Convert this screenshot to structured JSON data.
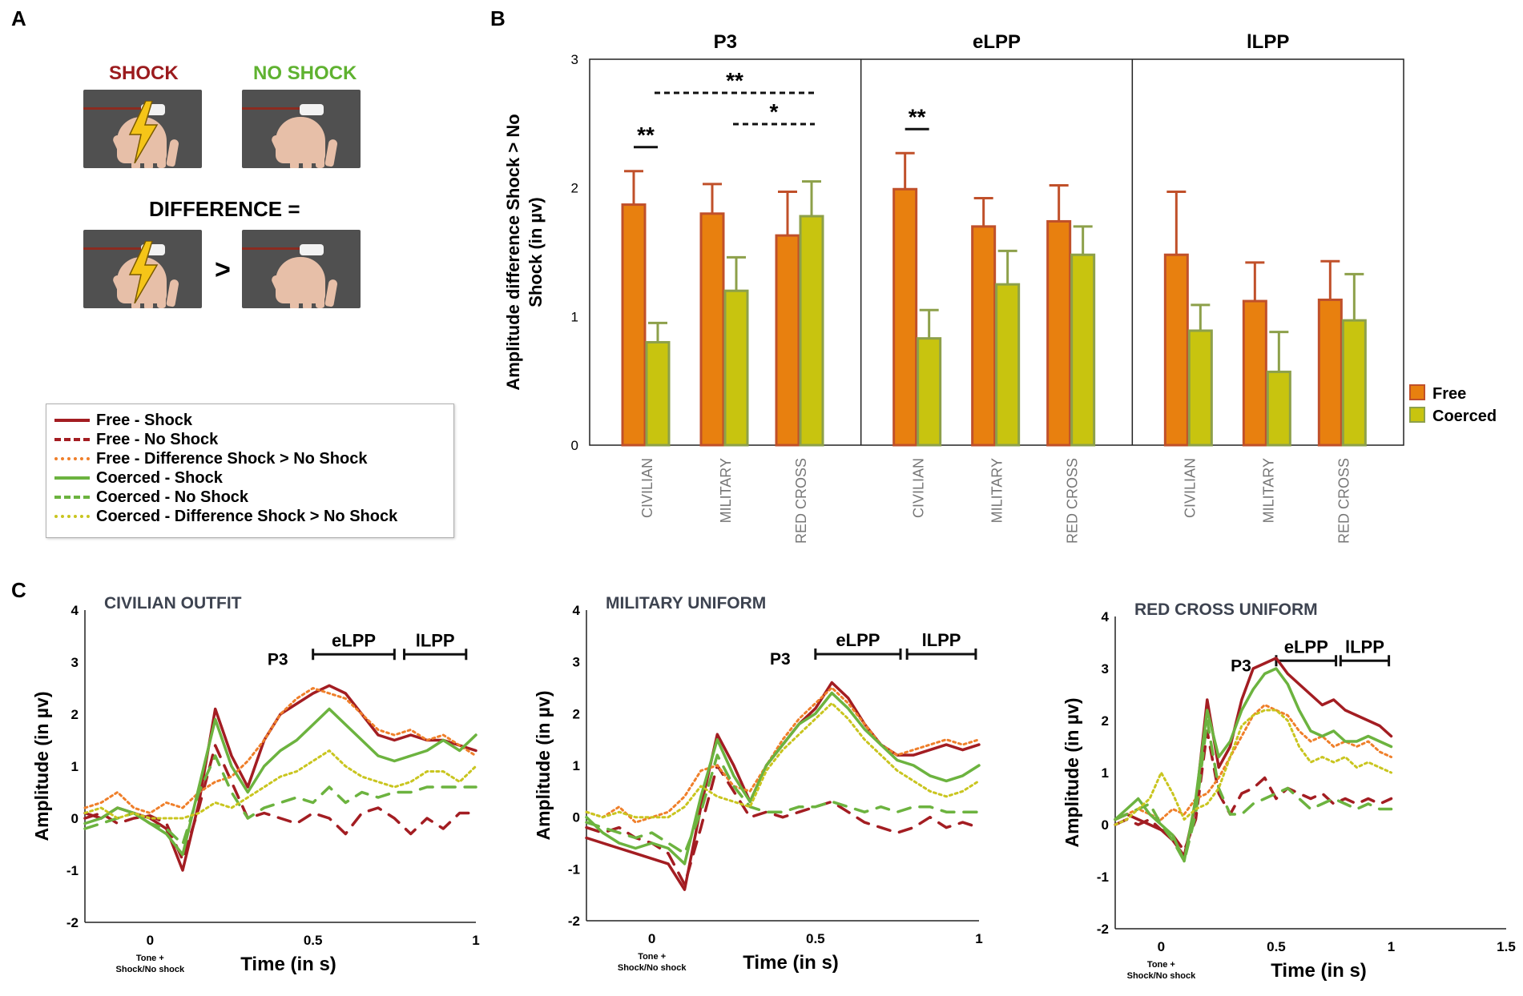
{
  "panels": {
    "a": "A",
    "b": "B",
    "c": "C"
  },
  "panel_a": {
    "shock_label": "SHOCK",
    "no_shock_label": "NO SHOCK",
    "difference_label": "DIFFERENCE =",
    "greater_than": ">",
    "shock_color": "#9b1b1e",
    "no_shock_color": "#5fb230"
  },
  "legend": [
    {
      "label": "Free - Shock",
      "color": "#a31d22",
      "style": "solid"
    },
    {
      "label": "Free - No Shock",
      "color": "#a31d22",
      "style": "dashed"
    },
    {
      "label": "Free - Difference Shock > No Shock",
      "color": "#ef7f2a",
      "style": "dotted"
    },
    {
      "label": "Coerced - Shock",
      "color": "#6cb33f",
      "style": "solid"
    },
    {
      "label": "Coerced - No Shock",
      "color": "#6cb33f",
      "style": "dashed"
    },
    {
      "label": "Coerced - Difference Shock > No Shock",
      "color": "#c9c51f",
      "style": "dotted"
    }
  ],
  "colors": {
    "free_bar": "#e8800f",
    "free_edge": "#c0502a",
    "coerced_bar": "#c8c40f",
    "coerced_edge": "#8da04a",
    "free_line": "#a31d22",
    "coerced_line": "#6cb33f",
    "free_diff": "#ef7f2a",
    "coerced_diff": "#c9c51f"
  },
  "chart_data": [
    {
      "id": "panel-b",
      "type": "bar",
      "ylabel": "Amplitude difference Shock > No Shock (in µv)",
      "ylim": [
        0,
        3
      ],
      "yticks": [
        "0",
        "1",
        "2",
        "3"
      ],
      "categories": [
        "CIVILIAN",
        "MILITARY",
        "RED CROSS"
      ],
      "legend_labels": [
        "Free",
        "Coerced"
      ],
      "legend_position": "right",
      "groups": [
        {
          "title": "P3",
          "series": [
            {
              "name": "Free",
              "values": [
                1.87,
                1.8,
                1.63
              ],
              "errors": [
                0.26,
                0.23,
                0.34
              ]
            },
            {
              "name": "Coerced",
              "values": [
                0.8,
                1.2,
                1.78
              ],
              "errors": [
                0.15,
                0.26,
                0.27
              ]
            }
          ],
          "significance": [
            {
              "label": "**",
              "from": "CIVILIAN Free",
              "to": "CIVILIAN Coerced"
            },
            {
              "label": "**",
              "from": "CIVILIAN Coerced",
              "to": "RED CROSS Coerced"
            },
            {
              "label": "*",
              "from": "MILITARY Coerced",
              "to": "RED CROSS Coerced"
            }
          ]
        },
        {
          "title": "eLPP",
          "series": [
            {
              "name": "Free",
              "values": [
                1.99,
                1.7,
                1.74
              ],
              "errors": [
                0.28,
                0.22,
                0.28
              ]
            },
            {
              "name": "Coerced",
              "values": [
                0.83,
                1.25,
                1.48
              ],
              "errors": [
                0.22,
                0.26,
                0.22
              ]
            }
          ],
          "significance": [
            {
              "label": "**",
              "from": "CIVILIAN Free",
              "to": "CIVILIAN Coerced"
            }
          ]
        },
        {
          "title": "lLPP",
          "series": [
            {
              "name": "Free",
              "values": [
                1.48,
                1.12,
                1.13
              ],
              "errors": [
                0.49,
                0.3,
                0.3
              ]
            },
            {
              "name": "Coerced",
              "values": [
                0.89,
                0.57,
                0.97
              ],
              "errors": [
                0.2,
                0.31,
                0.36
              ]
            }
          ],
          "significance": []
        }
      ]
    },
    {
      "id": "panel-c-civilian",
      "type": "line",
      "title": "CIVILIAN OUTFIT",
      "xlabel": "Time (in s)",
      "ylabel": "Amplitude (in µv)",
      "xlim": [
        -0.2,
        1.0
      ],
      "ylim": [
        -2,
        4
      ],
      "xticks": [
        {
          "v": 0,
          "label": "0"
        },
        {
          "v": 0.5,
          "label": "0.5"
        },
        {
          "v": 1.0,
          "label": "1"
        }
      ],
      "yticks": [
        -2,
        -1,
        0,
        1,
        2,
        3,
        4
      ],
      "onset_label": [
        "Tone +",
        "Shock/No shock"
      ],
      "components": [
        {
          "label": "P3",
          "v": 0.45,
          "type": "label"
        },
        {
          "label": "eLPP",
          "start": 0.5,
          "end": 0.75
        },
        {
          "label": "lLPP",
          "start": 0.78,
          "end": 0.97
        }
      ],
      "x": [
        -0.2,
        -0.15,
        -0.1,
        -0.05,
        0,
        0.05,
        0.1,
        0.15,
        0.2,
        0.25,
        0.3,
        0.35,
        0.4,
        0.45,
        0.5,
        0.55,
        0.6,
        0.65,
        0.7,
        0.75,
        0.8,
        0.85,
        0.9,
        0.95,
        1.0
      ],
      "series": [
        {
          "name": "Free - Shock",
          "values": [
            0.1,
            0.0,
            0.2,
            0.1,
            0.0,
            -0.2,
            -1.0,
            0.3,
            2.1,
            1.2,
            0.6,
            1.5,
            2.0,
            2.2,
            2.4,
            2.55,
            2.4,
            2.0,
            1.6,
            1.5,
            1.6,
            1.5,
            1.5,
            1.4,
            1.3
          ]
        },
        {
          "name": "Free - No Shock",
          "values": [
            0.0,
            0.1,
            -0.1,
            0.0,
            0.05,
            -0.1,
            -0.8,
            0.2,
            1.4,
            0.7,
            0.0,
            0.1,
            0.0,
            -0.1,
            0.1,
            0.0,
            -0.3,
            0.1,
            0.2,
            0.0,
            -0.3,
            0.0,
            -0.2,
            0.1,
            0.1
          ]
        },
        {
          "name": "Free - Difference",
          "values": [
            0.2,
            0.3,
            0.5,
            0.2,
            0.1,
            0.3,
            0.2,
            0.5,
            0.7,
            0.8,
            1.1,
            1.5,
            2.0,
            2.3,
            2.5,
            2.4,
            2.3,
            2.0,
            1.7,
            1.6,
            1.7,
            1.5,
            1.6,
            1.4,
            1.2
          ]
        },
        {
          "name": "Coerced - Shock",
          "values": [
            -0.1,
            0.0,
            0.2,
            0.1,
            -0.1,
            -0.3,
            -0.7,
            0.6,
            1.9,
            1.0,
            0.5,
            1.0,
            1.3,
            1.5,
            1.8,
            2.1,
            1.8,
            1.5,
            1.2,
            1.1,
            1.2,
            1.3,
            1.5,
            1.3,
            1.6
          ]
        },
        {
          "name": "Coerced - No Shock",
          "values": [
            -0.2,
            -0.1,
            0.0,
            0.1,
            -0.1,
            -0.2,
            -0.5,
            0.5,
            1.2,
            0.5,
            0.0,
            0.2,
            0.3,
            0.4,
            0.3,
            0.6,
            0.3,
            0.5,
            0.4,
            0.5,
            0.5,
            0.6,
            0.6,
            0.6,
            0.6
          ]
        },
        {
          "name": "Coerced - Difference",
          "values": [
            0.1,
            0.2,
            0.0,
            0.1,
            0.0,
            0.0,
            0.0,
            0.1,
            0.3,
            0.2,
            0.4,
            0.6,
            0.8,
            0.9,
            1.1,
            1.3,
            1.0,
            0.8,
            0.7,
            0.6,
            0.7,
            0.9,
            0.9,
            0.7,
            1.0
          ]
        }
      ]
    },
    {
      "id": "panel-c-military",
      "type": "line",
      "title": "MILITARY UNIFORM",
      "xlabel": "Time (in s)",
      "ylabel": "Amplitude (in µv)",
      "xlim": [
        -0.2,
        1.0
      ],
      "ylim": [
        -2,
        4
      ],
      "xticks": [
        {
          "v": 0,
          "label": "0"
        },
        {
          "v": 0.5,
          "label": "0.5"
        },
        {
          "v": 1.0,
          "label": "1"
        }
      ],
      "yticks": [
        -2,
        -1,
        0,
        1,
        2,
        3,
        4
      ],
      "onset_label": [
        "Tone +",
        "Shock/No shock"
      ],
      "components": [
        {
          "label": "P3",
          "v": 0.45,
          "type": "label"
        },
        {
          "label": "eLPP",
          "start": 0.5,
          "end": 0.76
        },
        {
          "label": "lLPP",
          "start": 0.78,
          "end": 0.99
        }
      ],
      "x": [
        -0.2,
        -0.15,
        -0.1,
        -0.05,
        0,
        0.05,
        0.1,
        0.15,
        0.2,
        0.25,
        0.3,
        0.35,
        0.4,
        0.45,
        0.5,
        0.55,
        0.6,
        0.65,
        0.7,
        0.75,
        0.8,
        0.85,
        0.9,
        0.95,
        1.0
      ],
      "series": [
        {
          "name": "Free - Shock",
          "values": [
            -0.4,
            -0.5,
            -0.6,
            -0.7,
            -0.8,
            -0.9,
            -1.4,
            0.2,
            1.6,
            1.0,
            0.3,
            1.0,
            1.4,
            1.8,
            2.1,
            2.6,
            2.3,
            1.8,
            1.4,
            1.2,
            1.2,
            1.3,
            1.4,
            1.3,
            1.4
          ]
        },
        {
          "name": "Free - No Shock",
          "values": [
            -0.2,
            -0.3,
            -0.2,
            -0.4,
            -0.5,
            -0.7,
            -1.3,
            -0.2,
            1.0,
            0.5,
            0.0,
            0.1,
            0.0,
            0.1,
            0.2,
            0.3,
            0.1,
            -0.1,
            -0.2,
            -0.3,
            -0.2,
            0.0,
            -0.2,
            -0.1,
            -0.2
          ]
        },
        {
          "name": "Free - Difference",
          "values": [
            0.1,
            0.0,
            0.2,
            -0.1,
            0.0,
            0.1,
            0.4,
            0.9,
            1.0,
            0.6,
            0.5,
            1.0,
            1.5,
            1.9,
            2.2,
            2.5,
            2.2,
            1.8,
            1.4,
            1.2,
            1.3,
            1.4,
            1.5,
            1.4,
            1.5
          ]
        },
        {
          "name": "Coerced - Shock",
          "values": [
            0.0,
            -0.3,
            -0.5,
            -0.6,
            -0.5,
            -0.6,
            -0.9,
            0.4,
            1.5,
            0.8,
            0.3,
            1.0,
            1.4,
            1.8,
            2.0,
            2.4,
            2.1,
            1.7,
            1.4,
            1.1,
            1.0,
            0.8,
            0.7,
            0.8,
            1.0
          ]
        },
        {
          "name": "Coerced - No Shock",
          "values": [
            -0.1,
            -0.2,
            -0.3,
            -0.4,
            -0.3,
            -0.5,
            -0.7,
            0.1,
            1.2,
            0.6,
            0.2,
            0.1,
            0.1,
            0.2,
            0.2,
            0.3,
            0.2,
            0.1,
            0.2,
            0.1,
            0.2,
            0.2,
            0.1,
            0.1,
            0.1
          ]
        },
        {
          "name": "Coerced - Difference",
          "values": [
            0.1,
            0.0,
            0.1,
            0.0,
            0.0,
            0.0,
            0.2,
            0.6,
            0.4,
            0.3,
            0.2,
            0.9,
            1.3,
            1.6,
            1.9,
            2.2,
            1.9,
            1.5,
            1.2,
            0.9,
            0.7,
            0.5,
            0.4,
            0.5,
            0.7
          ]
        }
      ]
    },
    {
      "id": "panel-c-redcross",
      "type": "line",
      "title": "RED CROSS UNIFORM",
      "xlabel": "Time (in s)",
      "ylabel": "Amplitude (in µv)",
      "xlim": [
        -0.2,
        1.5
      ],
      "ylim": [
        -2,
        4
      ],
      "xticks": [
        {
          "v": 0,
          "label": "0"
        },
        {
          "v": 0.5,
          "label": "0.5"
        },
        {
          "v": 1.0,
          "label": "1"
        },
        {
          "v": 1.5,
          "label": "1.5"
        }
      ],
      "yticks": [
        -2,
        -1,
        0,
        1,
        2,
        3,
        4
      ],
      "onset_label": [
        "Tone +",
        "Shock/No shock"
      ],
      "components": [
        {
          "label": "P3",
          "v": 0.45,
          "type": "label"
        },
        {
          "label": "eLPP",
          "start": 0.5,
          "end": 0.76
        },
        {
          "label": "lLPP",
          "start": 0.78,
          "end": 0.99
        }
      ],
      "x": [
        -0.2,
        -0.15,
        -0.1,
        -0.05,
        0,
        0.05,
        0.1,
        0.15,
        0.2,
        0.25,
        0.3,
        0.35,
        0.4,
        0.45,
        0.5,
        0.55,
        0.6,
        0.65,
        0.7,
        0.75,
        0.8,
        0.85,
        0.9,
        0.95,
        1.0
      ],
      "series": [
        {
          "name": "Free - Shock",
          "values": [
            0.1,
            0.2,
            0.1,
            0.0,
            -0.1,
            -0.3,
            -0.6,
            0.4,
            2.4,
            1.1,
            1.5,
            2.4,
            3.0,
            3.1,
            3.2,
            2.9,
            2.7,
            2.5,
            2.3,
            2.4,
            2.2,
            2.1,
            2.0,
            1.9,
            1.7
          ]
        },
        {
          "name": "Free - No Shock",
          "values": [
            0.0,
            0.1,
            0.0,
            0.1,
            -0.1,
            -0.2,
            -0.5,
            0.1,
            1.8,
            0.6,
            0.2,
            0.6,
            0.7,
            0.9,
            0.5,
            0.7,
            0.6,
            0.5,
            0.6,
            0.4,
            0.5,
            0.4,
            0.5,
            0.4,
            0.5
          ]
        },
        {
          "name": "Free - Difference",
          "values": [
            0.1,
            0.2,
            0.3,
            0.2,
            0.1,
            0.3,
            0.2,
            0.5,
            0.6,
            0.9,
            1.3,
            1.7,
            2.1,
            2.3,
            2.2,
            2.1,
            1.8,
            1.6,
            1.7,
            1.5,
            1.6,
            1.5,
            1.6,
            1.4,
            1.3
          ]
        },
        {
          "name": "Coerced - Shock",
          "values": [
            0.1,
            0.3,
            0.5,
            0.2,
            0.0,
            -0.2,
            -0.7,
            0.5,
            2.2,
            1.3,
            1.6,
            2.2,
            2.6,
            2.9,
            3.0,
            2.7,
            2.2,
            1.8,
            1.7,
            1.8,
            1.6,
            1.6,
            1.7,
            1.6,
            1.5
          ]
        },
        {
          "name": "Coerced - No Shock",
          "values": [
            0.1,
            0.2,
            0.3,
            0.4,
            0.0,
            -0.3,
            -0.7,
            0.2,
            2.0,
            0.7,
            0.2,
            0.2,
            0.4,
            0.5,
            0.6,
            0.7,
            0.5,
            0.3,
            0.4,
            0.5,
            0.4,
            0.3,
            0.4,
            0.3,
            0.3
          ]
        },
        {
          "name": "Coerced - Difference",
          "values": [
            0.0,
            0.1,
            0.3,
            0.5,
            1.0,
            0.6,
            0.1,
            0.3,
            0.4,
            0.7,
            1.3,
            1.9,
            2.1,
            2.2,
            2.2,
            2.0,
            1.5,
            1.2,
            1.3,
            1.2,
            1.3,
            1.1,
            1.2,
            1.1,
            1.0
          ]
        }
      ]
    }
  ]
}
